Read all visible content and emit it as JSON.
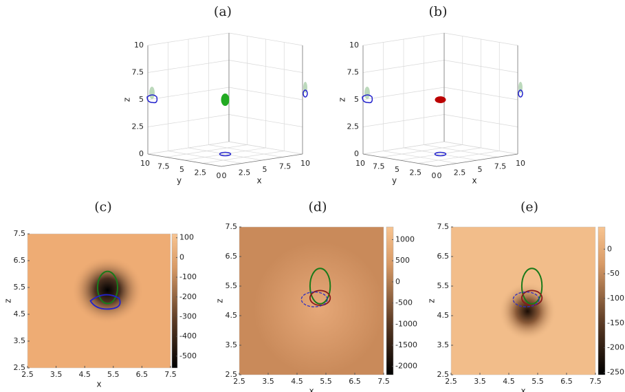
{
  "chart_data": [
    {
      "type": "box3d",
      "title": "(a)",
      "xlabel": "x",
      "ylabel": "y",
      "zlabel": "z",
      "xlim": [
        0,
        10
      ],
      "ylim": [
        0,
        10
      ],
      "zlim": [
        0,
        10
      ],
      "xticks": [
        0,
        2.5,
        5,
        7.5,
        10
      ],
      "yticks": [
        0,
        2.5,
        5,
        7.5,
        10
      ],
      "zticks": [
        0,
        2.5,
        5,
        7.5,
        10
      ],
      "grid": true
    },
    {
      "type": "box3d",
      "title": "(b)",
      "xlabel": "x",
      "ylabel": "y",
      "zlabel": "z",
      "xlim": [
        0,
        10
      ],
      "ylim": [
        0,
        10
      ],
      "zlim": [
        0,
        10
      ],
      "xticks": [
        0,
        2.5,
        5,
        7.5,
        10
      ],
      "yticks": [
        0,
        2.5,
        5,
        7.5,
        10
      ],
      "zticks": [
        0,
        2.5,
        5,
        7.5,
        10
      ],
      "grid": true
    },
    {
      "type": "heatmap",
      "title": "(c)",
      "xlabel": "x",
      "ylabel": "z",
      "xlim": [
        2.5,
        7.5
      ],
      "ylim": [
        2.5,
        7.5
      ],
      "xticks": [
        2.5,
        3.5,
        4.5,
        5.5,
        6.5,
        7.5
      ],
      "yticks": [
        2.5,
        3.5,
        4.5,
        5.5,
        6.5,
        7.5
      ],
      "clim": [
        -560,
        120
      ],
      "cticks": [
        100,
        0,
        -100,
        -200,
        -300,
        -400,
        -500
      ]
    },
    {
      "type": "heatmap",
      "title": "(d)",
      "xlabel": "x",
      "ylabel": "z",
      "xlim": [
        2.5,
        7.5
      ],
      "ylim": [
        2.5,
        7.5
      ],
      "xticks": [
        2.5,
        3.5,
        4.5,
        5.5,
        6.5,
        7.5
      ],
      "yticks": [
        2.5,
        3.5,
        4.5,
        5.5,
        6.5,
        7.5
      ],
      "clim": [
        -2200,
        1300
      ],
      "cticks": [
        1000,
        500,
        0,
        -500,
        -1000,
        -1500,
        -2000
      ]
    },
    {
      "type": "heatmap",
      "title": "(e)",
      "xlabel": "x",
      "ylabel": "z",
      "xlim": [
        2.5,
        7.5
      ],
      "ylim": [
        2.5,
        7.5
      ],
      "xticks": [
        2.5,
        3.5,
        4.5,
        5.5,
        6.5,
        7.5
      ],
      "yticks": [
        2.5,
        3.5,
        4.5,
        5.5,
        6.5,
        7.5
      ],
      "clim": [
        -255,
        45
      ],
      "cticks": [
        0,
        -50,
        -100,
        -150,
        -200,
        -250
      ]
    }
  ]
}
